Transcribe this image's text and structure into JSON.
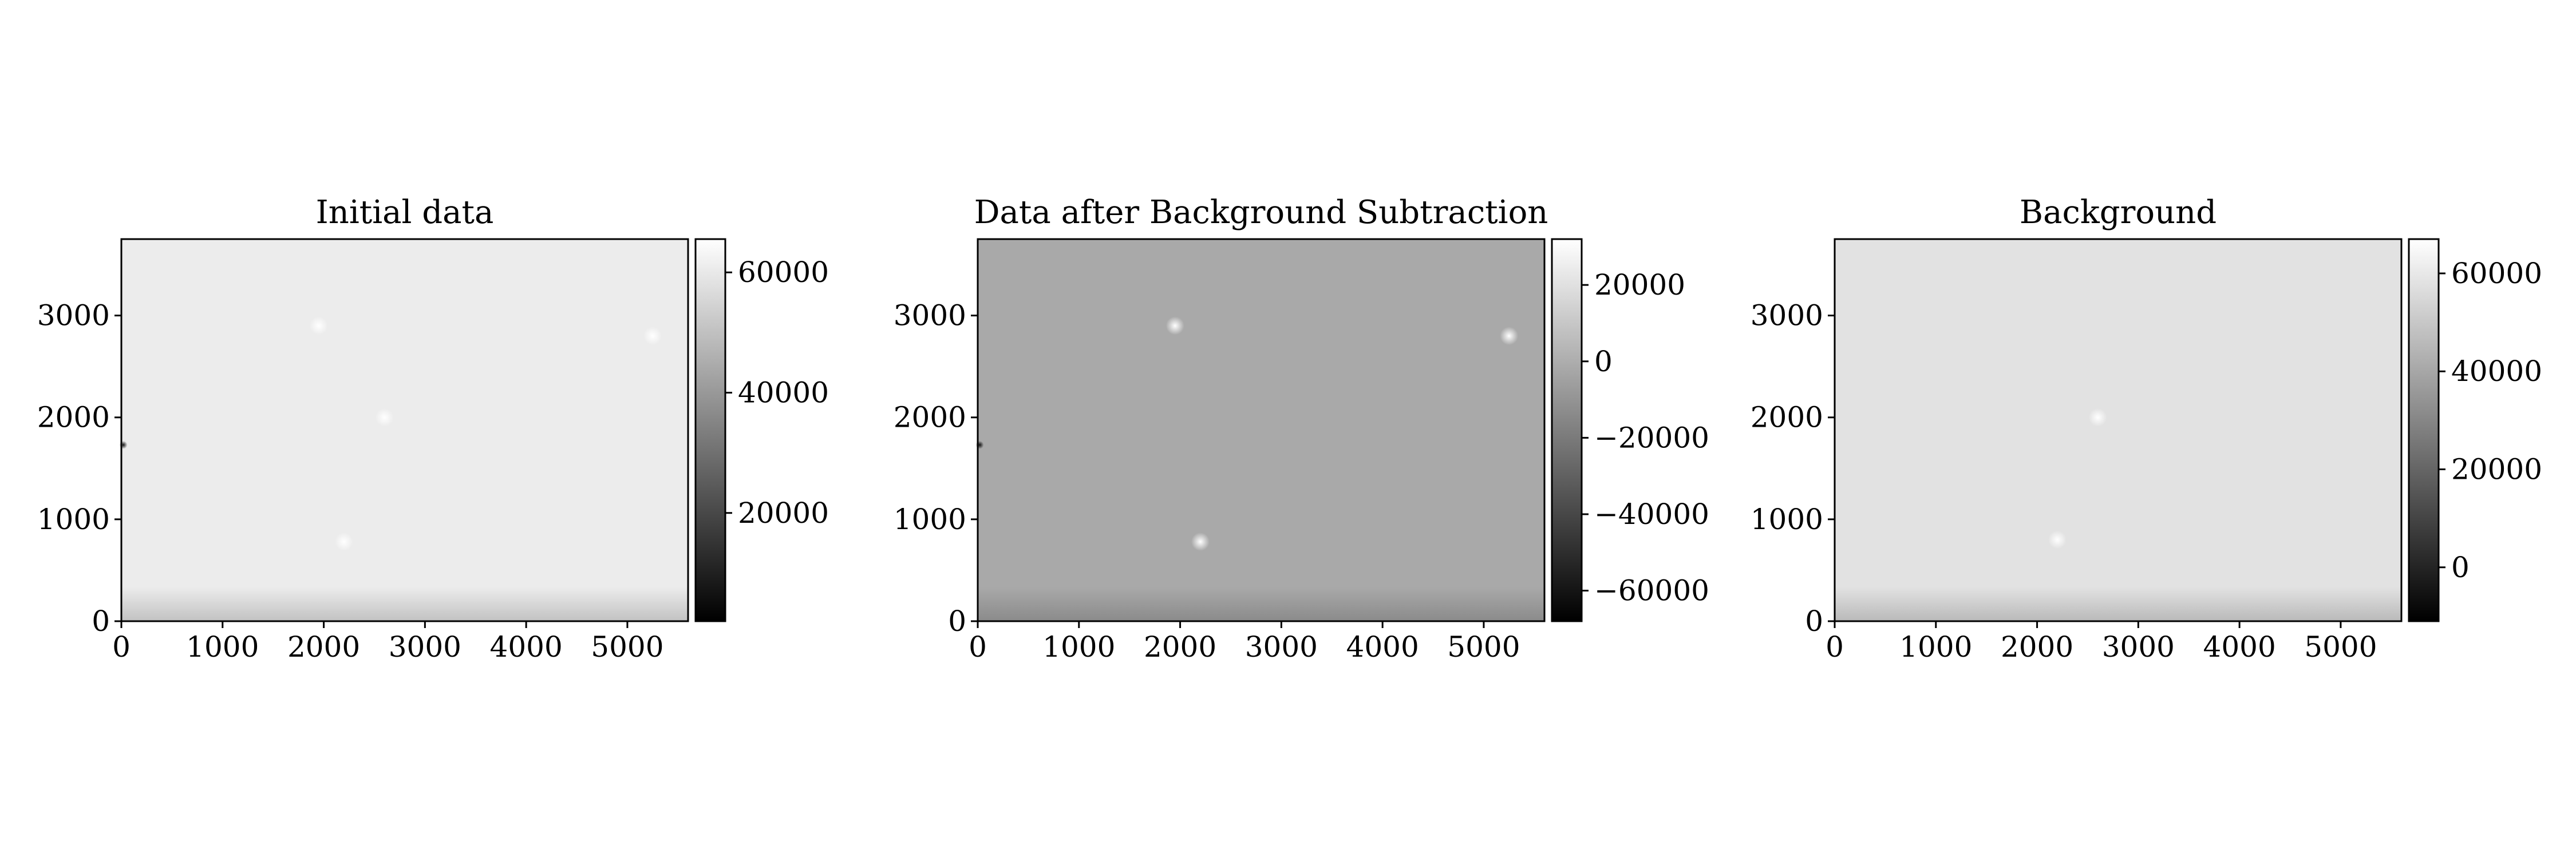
{
  "chart_data": [
    {
      "type": "heatmap",
      "title": "Initial data",
      "colormap": "gray",
      "background_color": "#ececec",
      "xlim": [
        0,
        5600
      ],
      "ylim": [
        0,
        3750
      ],
      "x_ticks": [
        0,
        1000,
        2000,
        3000,
        4000,
        5000
      ],
      "y_ticks": [
        0,
        1000,
        2000,
        3000
      ],
      "x_tick_labels": [
        "0",
        "1000",
        "2000",
        "3000",
        "4000",
        "5000"
      ],
      "y_tick_labels": [
        "0",
        "1000",
        "2000",
        "3000"
      ],
      "colorbar": {
        "range": [
          2000,
          65535
        ],
        "ticks": [
          20000,
          40000,
          60000
        ],
        "tick_labels": [
          "20000",
          "40000",
          "60000"
        ]
      },
      "features": [
        {
          "x": 2200,
          "y": 780,
          "value": 65000
        },
        {
          "x": 1950,
          "y": 2900,
          "value": 64000
        },
        {
          "x": 2600,
          "y": 2000,
          "value": 62000
        },
        {
          "x": 5250,
          "y": 2800,
          "value": 63000
        },
        {
          "x": 20,
          "y": 1730,
          "value": 3000
        }
      ]
    },
    {
      "type": "heatmap",
      "title": "Data after Background Subtraction",
      "colormap": "gray",
      "background_color": "#a9a9a9",
      "xlim": [
        0,
        5600
      ],
      "ylim": [
        0,
        3750
      ],
      "x_ticks": [
        0,
        1000,
        2000,
        3000,
        4000,
        5000
      ],
      "y_ticks": [
        0,
        1000,
        2000,
        3000
      ],
      "x_tick_labels": [
        "0",
        "1000",
        "2000",
        "3000",
        "4000",
        "5000"
      ],
      "y_tick_labels": [
        "0",
        "1000",
        "2000",
        "3000"
      ],
      "colorbar": {
        "range": [
          -68000,
          32000
        ],
        "ticks": [
          -60000,
          -40000,
          -20000,
          0,
          20000
        ],
        "tick_labels": [
          "−60000",
          "−40000",
          "−20000",
          "0",
          "20000"
        ]
      },
      "features": [
        {
          "x": 2200,
          "y": 780,
          "value": 6000
        },
        {
          "x": 1950,
          "y": 2900,
          "value": 4000
        },
        {
          "x": 5250,
          "y": 2800,
          "value": 4000
        },
        {
          "x": 20,
          "y": 1730,
          "value": -60000
        }
      ]
    },
    {
      "type": "heatmap",
      "title": "Background",
      "colormap": "gray",
      "background_color": "#e2e2e2",
      "xlim": [
        0,
        5600
      ],
      "ylim": [
        0,
        3750
      ],
      "x_ticks": [
        0,
        1000,
        2000,
        3000,
        4000,
        5000
      ],
      "y_ticks": [
        0,
        1000,
        2000,
        3000
      ],
      "x_tick_labels": [
        "0",
        "1000",
        "2000",
        "3000",
        "4000",
        "5000"
      ],
      "y_tick_labels": [
        "0",
        "1000",
        "2000",
        "3000"
      ],
      "colorbar": {
        "range": [
          -11000,
          67000
        ],
        "ticks": [
          0,
          20000,
          40000,
          60000
        ],
        "tick_labels": [
          "0",
          "20000",
          "40000",
          "60000"
        ]
      },
      "features": [
        {
          "x": 2200,
          "y": 800,
          "value": 60000
        },
        {
          "x": 2600,
          "y": 2000,
          "value": 60000
        }
      ]
    }
  ]
}
